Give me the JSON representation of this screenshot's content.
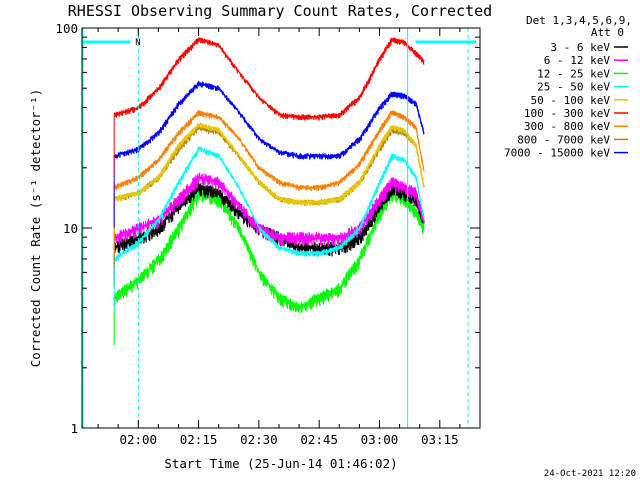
{
  "chart_data": {
    "type": "line",
    "title": "RHESSI Observing Summary Count Rates, Corrected",
    "xlabel": "Start Time (25-Jun-14 01:46:02)",
    "ylabel": "Corrected Count Rate (s⁻¹ detector⁻¹)",
    "y_scale": "log",
    "ylim": [
      1,
      100
    ],
    "xlim": [
      "01:46",
      "03:25"
    ],
    "x_ticks": [
      "02:00",
      "02:15",
      "02:30",
      "02:45",
      "03:00",
      "03:15"
    ],
    "y_ticks": [
      "1",
      "10",
      "100"
    ],
    "x": [
      "01:54",
      "02:00",
      "02:05",
      "02:10",
      "02:15",
      "02:20",
      "02:25",
      "02:30",
      "02:35",
      "02:40",
      "02:45",
      "02:50",
      "02:55",
      "03:00",
      "03:03",
      "03:06",
      "03:09",
      "03:11"
    ],
    "series": [
      {
        "name": "3 - 6 keV",
        "color": "#000000",
        "values": [
          8,
          9,
          10,
          13,
          16,
          15,
          12,
          10,
          9,
          8,
          8,
          8,
          9,
          13,
          16,
          15,
          14,
          11
        ]
      },
      {
        "name": "6 - 12 keV",
        "color": "#ff00ff",
        "values": [
          9,
          10,
          11,
          14,
          18,
          17,
          13,
          10,
          9,
          9,
          9,
          9,
          10,
          14,
          17,
          16,
          15,
          11
        ]
      },
      {
        "name": "12 - 25 keV",
        "color": "#00ff00",
        "values": [
          4.5,
          5.5,
          7,
          10,
          15,
          14,
          10,
          6,
          4.5,
          4,
          4.5,
          5,
          7,
          12,
          15,
          14,
          12,
          10
        ]
      },
      {
        "name": "25 - 50 keV",
        "color": "#00ffff",
        "values": [
          7,
          8.5,
          11,
          17,
          25,
          23,
          16,
          10,
          8,
          7.5,
          7.5,
          8,
          10,
          17,
          23,
          22,
          18,
          11
        ]
      },
      {
        "name": "50 - 100 keV",
        "color": "#e6c800",
        "values": [
          14,
          15,
          18,
          26,
          33,
          31,
          23,
          17,
          14,
          13.5,
          13.5,
          14,
          17,
          26,
          32,
          31,
          26,
          16
        ]
      },
      {
        "name": "100 - 300 keV",
        "color": "#ff0000",
        "values": [
          37,
          40,
          50,
          70,
          88,
          82,
          60,
          45,
          37,
          36,
          36,
          37,
          45,
          70,
          88,
          85,
          75,
          68
        ]
      },
      {
        "name": "300 - 800 keV",
        "color": "#ff8000",
        "values": [
          16,
          18,
          22,
          30,
          38,
          36,
          28,
          20,
          17,
          16,
          16,
          17,
          21,
          31,
          38,
          36,
          32,
          19
        ]
      },
      {
        "name": "800 - 7000 keV",
        "color": "#b8860b",
        "values": [
          14,
          15,
          18,
          25,
          32,
          30,
          23,
          17,
          14,
          13.5,
          13.5,
          14,
          17,
          25,
          31,
          30,
          26,
          16
        ]
      },
      {
        "name": "7000 - 15000 keV",
        "color": "#0000ff",
        "values": [
          23,
          25,
          30,
          42,
          53,
          50,
          38,
          28,
          24,
          23,
          23,
          23,
          28,
          40,
          47,
          46,
          42,
          30
        ]
      }
    ],
    "legend": {
      "placement": "right",
      "header": [
        "Det 1,3,4,5,6,9,",
        "Att 0"
      ],
      "entries": [
        {
          "label": "3 - 6 keV",
          "color": "#000000"
        },
        {
          "label": "6 - 12 keV",
          "color": "#ff00ff"
        },
        {
          "label": "12 - 25 keV",
          "color": "#00ff00"
        },
        {
          "label": "25 - 50 keV",
          "color": "#00ffff"
        },
        {
          "label": "50 - 100 keV",
          "color": "#e6c800"
        },
        {
          "label": "100 - 300 keV",
          "color": "#ff0000"
        },
        {
          "label": "300 - 800 keV",
          "color": "#ff8000"
        },
        {
          "label": "800 - 7000 keV",
          "color": "#b8860b"
        },
        {
          "label": "7000 - 15000 keV",
          "color": "#0000ff"
        }
      ]
    },
    "annotations": {
      "flag_label": "N",
      "flag_segments": [
        [
          "01:46",
          "01:58"
        ],
        [
          "03:09",
          "03:24"
        ]
      ],
      "dashed_lines": [
        "02:00",
        "03:22"
      ],
      "solid_line": "03:07",
      "flag_color": "#00ffff"
    },
    "grid": false
  },
  "footer": {
    "timestamp": "24-Oct-2021 12:20"
  }
}
